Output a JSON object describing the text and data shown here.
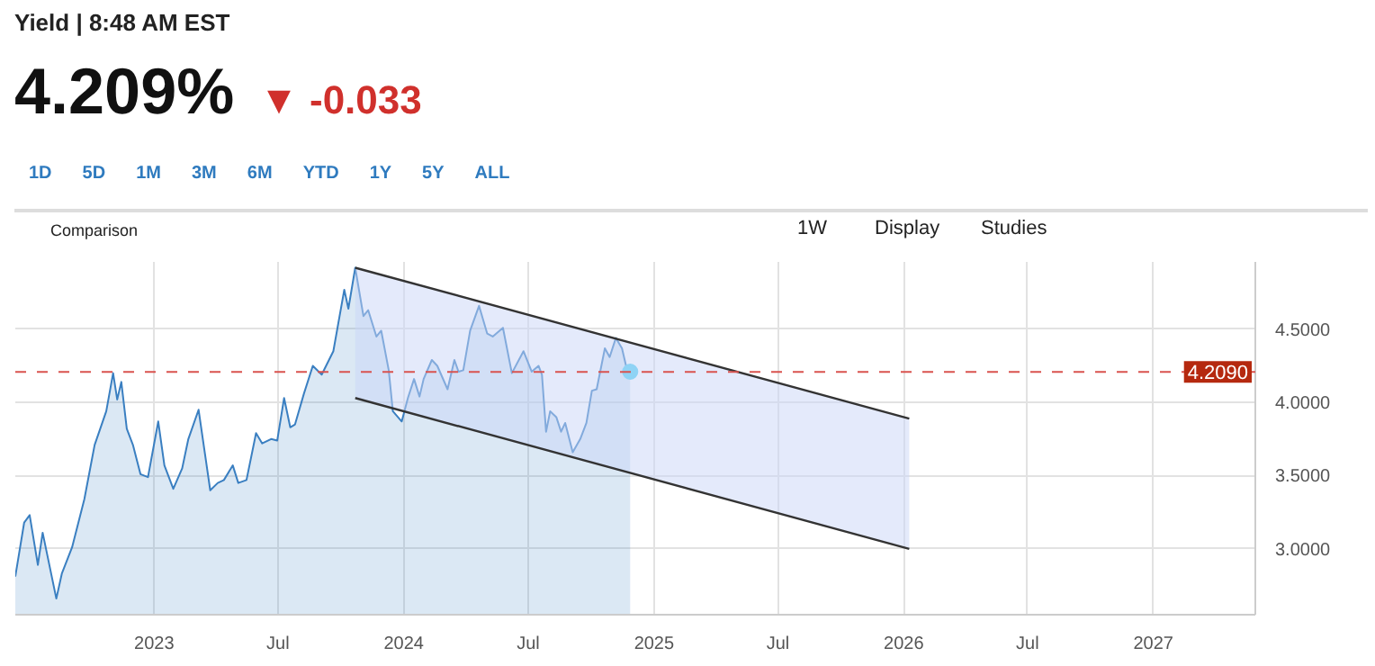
{
  "chart_data": {
    "type": "area",
    "title": "Yield | 8:48 AM EST",
    "subtitle": "4.209%",
    "annotations": [
      "▼ -0.033",
      "1D",
      "5D",
      "1M",
      "3M",
      "6M",
      "YTD",
      "1Y",
      "5Y",
      "ALL",
      "Comparison",
      "1W",
      "Display",
      "Studies"
    ],
    "x": [
      "2022-06-12",
      "2022-06-25",
      "2022-07-03",
      "2022-07-15",
      "2022-07-22",
      "2022-08-11",
      "2022-08-19",
      "2022-09-03",
      "2022-09-21",
      "2022-10-06",
      "2022-10-23",
      "2022-11-02",
      "2022-11-08",
      "2022-11-14",
      "2022-11-22",
      "2022-12-01",
      "2022-12-12",
      "2022-12-23",
      "2023-01-07",
      "2023-01-16",
      "2023-01-29",
      "2023-02-11",
      "2023-02-20",
      "2023-03-07",
      "2023-03-24",
      "2023-04-04",
      "2023-04-13",
      "2023-04-26",
      "2023-05-04",
      "2023-05-16",
      "2023-05-30",
      "2023-06-08",
      "2023-06-21",
      "2023-06-30",
      "2023-07-10",
      "2023-07-19",
      "2023-07-26",
      "2023-08-08",
      "2023-08-21",
      "2023-09-03",
      "2023-09-20",
      "2023-10-06",
      "2023-10-12",
      "2023-10-22",
      "2023-11-03",
      "2023-11-10",
      "2023-11-22",
      "2023-11-29",
      "2023-12-10",
      "2023-12-16",
      "2023-12-29",
      "2024-01-07",
      "2024-01-16",
      "2024-01-24",
      "2024-01-30",
      "2024-02-11",
      "2024-02-19",
      "2024-03-05",
      "2024-03-15",
      "2024-03-21",
      "2024-03-28",
      "2024-04-07",
      "2024-04-20",
      "2024-05-02",
      "2024-05-10",
      "2024-05-25",
      "2024-06-07",
      "2024-06-24",
      "2024-07-06",
      "2024-07-16",
      "2024-07-21",
      "2024-07-27",
      "2024-08-02",
      "2024-08-11",
      "2024-08-18",
      "2024-08-24",
      "2024-09-04",
      "2024-09-15",
      "2024-09-24",
      "2024-10-02",
      "2024-10-09",
      "2024-10-21",
      "2024-10-28",
      "2024-11-06",
      "2024-11-15",
      "2024-11-21",
      "2024-11-27"
    ],
    "series": [
      {
        "color": "#3a7fc1",
        "values": [
          2.81,
          3.18,
          3.23,
          2.89,
          3.11,
          2.66,
          2.83,
          3.01,
          3.34,
          3.71,
          3.94,
          4.2,
          4.02,
          4.14,
          3.82,
          3.71,
          3.51,
          3.49,
          3.87,
          3.57,
          3.41,
          3.55,
          3.75,
          3.95,
          3.4,
          3.45,
          3.47,
          3.57,
          3.45,
          3.47,
          3.79,
          3.72,
          3.75,
          3.74,
          4.03,
          3.83,
          3.85,
          4.06,
          4.25,
          4.19,
          4.35,
          4.77,
          4.64,
          4.92,
          4.59,
          4.63,
          4.45,
          4.49,
          4.22,
          3.94,
          3.87,
          4.03,
          4.16,
          4.04,
          4.16,
          4.29,
          4.25,
          4.09,
          4.29,
          4.21,
          4.22,
          4.49,
          4.66,
          4.47,
          4.45,
          4.51,
          4.2,
          4.35,
          4.21,
          4.25,
          4.19,
          3.8,
          3.94,
          3.9,
          3.8,
          3.86,
          3.66,
          3.75,
          3.86,
          4.08,
          4.09,
          4.37,
          4.31,
          4.44,
          4.37,
          4.25,
          4.21
        ]
      },
      {
        "type": "line",
        "color": "#333333",
        "x": [
          "2023-10-22",
          "2026-01-09"
        ],
        "values": [
          4.92,
          3.89
        ],
        "lower": [
          4.03,
          3.0
        ],
        "upper": [
          4.92,
          3.89
        ]
      },
      {
        "type": "line",
        "color": "#333333",
        "x": [
          "2023-10-22",
          "2026-01-09"
        ],
        "values": [
          4.03,
          3.0
        ]
      },
      {
        "type": "scatter",
        "color": "#8fd3f5",
        "x": [
          "2024-11-27"
        ],
        "values": [
          4.21
        ]
      }
    ],
    "xlim": [
      "2022-06-12",
      "2027-05-30"
    ],
    "xticks": [
      {
        "value": "2023-01-01",
        "label": "2023"
      },
      {
        "value": "2023-07-01",
        "label": "Jul"
      },
      {
        "value": "2024-01-01",
        "label": "2024"
      },
      {
        "value": "2024-07-01",
        "label": "Jul"
      },
      {
        "value": "2025-01-01",
        "label": "2025"
      },
      {
        "value": "2025-07-01",
        "label": "Jul"
      },
      {
        "value": "2026-01-01",
        "label": "2026"
      },
      {
        "value": "2026-07-01",
        "label": "Jul"
      },
      {
        "value": "2027-01-01",
        "label": "2027"
      }
    ],
    "ylim": [
      2.55,
      4.96
    ],
    "yticks": [
      {
        "value": 3.0,
        "label": "3.0000"
      },
      {
        "value": 3.5,
        "label": "3.5000"
      },
      {
        "value": 4.0,
        "label": "4.0000"
      },
      {
        "value": 4.5,
        "label": "4.5000"
      }
    ],
    "ref_lines": [
      {
        "axis": "y",
        "value": 4.209,
        "label": "4.2090",
        "color": "#d9534f",
        "line_style": "dashed"
      }
    ],
    "grid": true
  }
}
